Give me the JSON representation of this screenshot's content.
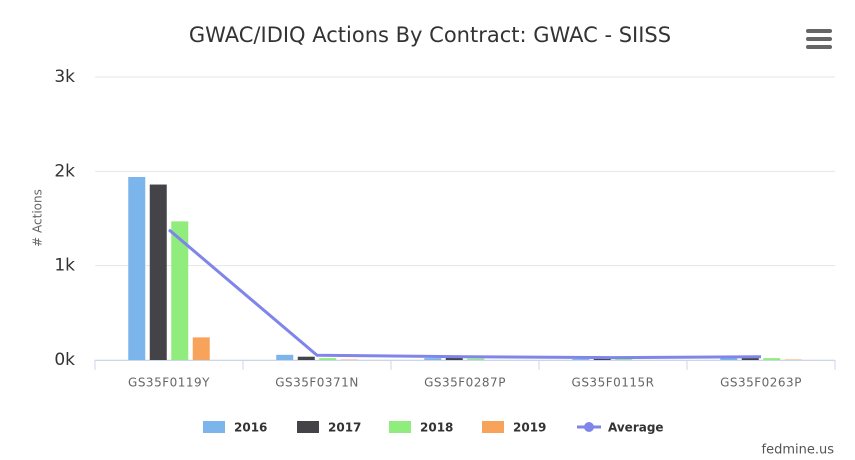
{
  "chart_data": {
    "type": "bar",
    "title": "GWAC/IDIQ Actions By Contract: GWAC - SIISS",
    "y_label": "# Actions",
    "credits": "fedmine.us",
    "categories": [
      "GS35F0119Y",
      "GS35F0371N",
      "GS35F0287P",
      "GS35F0115R",
      "GS35F0263P"
    ],
    "series": [
      {
        "name": "2016",
        "type": "bar",
        "color": "#7cb5ec",
        "values": [
          1940,
          55,
          20,
          10,
          20
        ]
      },
      {
        "name": "2017",
        "type": "bar",
        "color": "#434348",
        "values": [
          1860,
          35,
          25,
          15,
          30
        ]
      },
      {
        "name": "2018",
        "type": "bar",
        "color": "#90ed7d",
        "values": [
          1470,
          20,
          15,
          10,
          20
        ]
      },
      {
        "name": "2019",
        "type": "bar",
        "color": "#f7a35c",
        "values": [
          240,
          5,
          0,
          0,
          5
        ]
      },
      {
        "name": "Average",
        "type": "line",
        "color": "#8085e9",
        "values": [
          1380,
          50,
          35,
          25,
          35
        ]
      }
    ],
    "ylim": [
      0,
      3000
    ],
    "yticks": [
      {
        "value": 0,
        "label": "0k"
      },
      {
        "value": 1000,
        "label": "1k"
      },
      {
        "value": 2000,
        "label": "2k"
      },
      {
        "value": 3000,
        "label": "3k"
      }
    ],
    "grid": true,
    "legend": "bottom"
  }
}
